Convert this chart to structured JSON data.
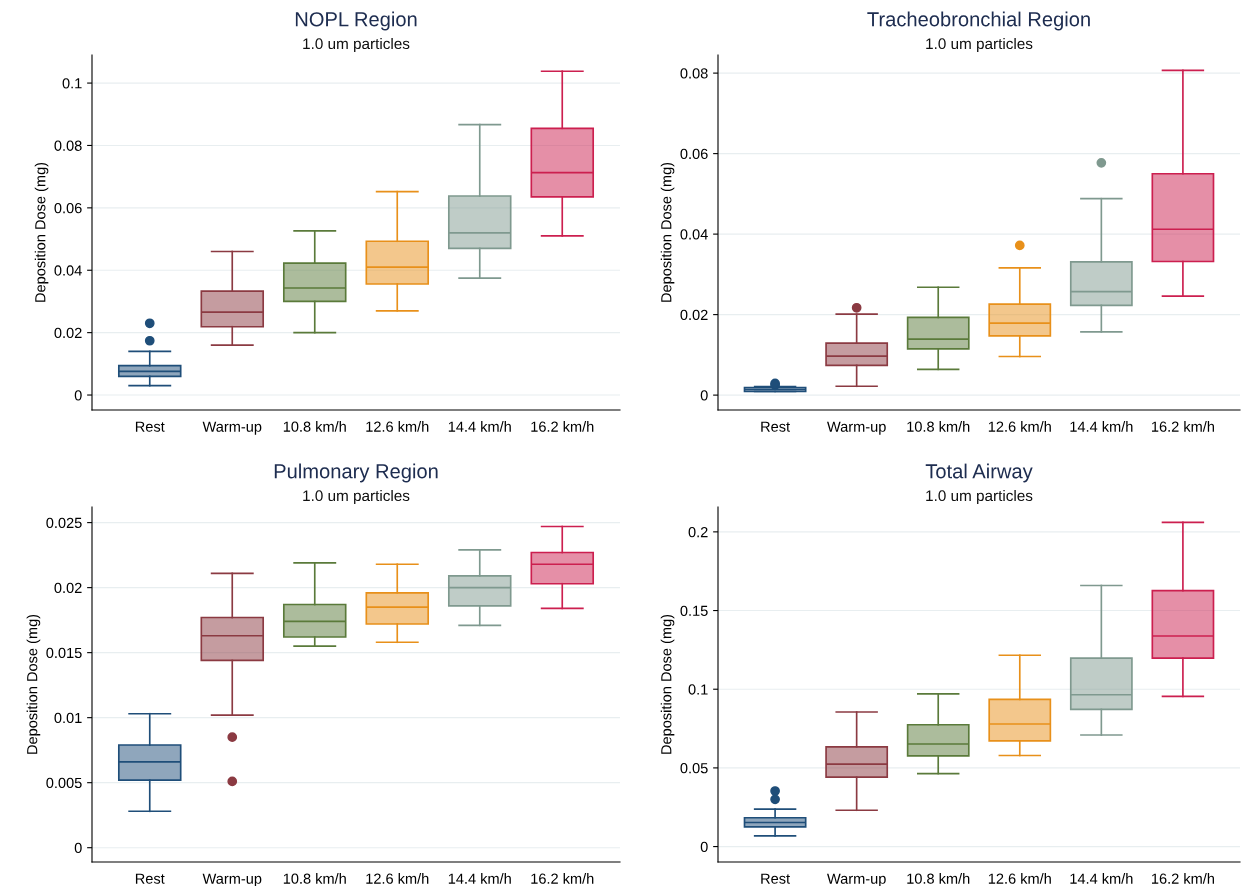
{
  "chart_data": [
    {
      "type": "box",
      "title": "NOPL Region",
      "subtitle": "1.0 um particles",
      "ylabel": "Deposition Dose (mg)",
      "categories": [
        "Rest",
        "Warm-up",
        "10.8 km/h",
        "12.6 km/h",
        "14.4 km/h",
        "16.2 km/h"
      ],
      "colors": [
        "#1f4e79",
        "#8b3a42",
        "#5a7a3a",
        "#e8901a",
        "#7f998f",
        "#cc1f4f"
      ],
      "boxes": [
        {
          "low": 0.003,
          "q1": 0.006,
          "median": 0.0076,
          "q3": 0.0094,
          "high": 0.014,
          "outliers": [
            0.0174,
            0.023
          ]
        },
        {
          "low": 0.016,
          "q1": 0.0219,
          "median": 0.0266,
          "q3": 0.0333,
          "high": 0.046
        },
        {
          "low": 0.02,
          "q1": 0.03,
          "median": 0.0343,
          "q3": 0.0423,
          "high": 0.0526
        },
        {
          "low": 0.027,
          "q1": 0.0356,
          "median": 0.041,
          "q3": 0.0493,
          "high": 0.0652
        },
        {
          "low": 0.0375,
          "q1": 0.047,
          "median": 0.052,
          "q3": 0.0638,
          "high": 0.0867
        },
        {
          "low": 0.051,
          "q1": 0.0635,
          "median": 0.0713,
          "q3": 0.0855,
          "high": 0.1038
        }
      ],
      "ylim": [
        -0.0048,
        0.109
      ],
      "yticks": [
        0,
        0.02,
        0.04,
        0.06,
        0.08,
        0.1
      ],
      "grid": "y"
    },
    {
      "type": "box",
      "title": "Tracheobronchial Region",
      "subtitle": "1.0 um particles",
      "ylabel": "Deposition Dose (mg)",
      "categories": [
        "Rest",
        "Warm-up",
        "10.8 km/h",
        "12.6 km/h",
        "14.4 km/h",
        "16.2 km/h"
      ],
      "colors": [
        "#1f4e79",
        "#8b3a42",
        "#5a7a3a",
        "#e8901a",
        "#7f998f",
        "#cc1f4f"
      ],
      "boxes": [
        {
          "low": 0.0009,
          "q1": 0.0009,
          "median": 0.0014,
          "q3": 0.0019,
          "high": 0.0021,
          "outliers": [
            0.0025,
            0.0029
          ]
        },
        {
          "low": 0.0022,
          "q1": 0.0074,
          "median": 0.0097,
          "q3": 0.0129,
          "high": 0.0201,
          "outliers": [
            0.0217
          ]
        },
        {
          "low": 0.0064,
          "q1": 0.0115,
          "median": 0.0139,
          "q3": 0.0193,
          "high": 0.0268
        },
        {
          "low": 0.0096,
          "q1": 0.0147,
          "median": 0.0179,
          "q3": 0.0226,
          "high": 0.0316,
          "outliers": [
            0.0372
          ]
        },
        {
          "low": 0.0157,
          "q1": 0.0223,
          "median": 0.0257,
          "q3": 0.0331,
          "high": 0.0488,
          "outliers": [
            0.0577
          ]
        },
        {
          "low": 0.0246,
          "q1": 0.0332,
          "median": 0.0412,
          "q3": 0.055,
          "high": 0.0807
        }
      ],
      "ylim": [
        -0.0037,
        0.0845
      ],
      "yticks": [
        0,
        0.02,
        0.04,
        0.06,
        0.08
      ],
      "grid": "y"
    },
    {
      "type": "box",
      "title": "Pulmonary Region",
      "subtitle": "1.0 um particles",
      "ylabel": "Deposition Dose (mg)",
      "categories": [
        "Rest",
        "Warm-up",
        "10.8 km/h",
        "12.6 km/h",
        "14.4 km/h",
        "16.2 km/h"
      ],
      "colors": [
        "#1f4e79",
        "#8b3a42",
        "#5a7a3a",
        "#e8901a",
        "#7f998f",
        "#cc1f4f"
      ],
      "boxes": [
        {
          "low": 0.0028,
          "q1": 0.0052,
          "median": 0.0066,
          "q3": 0.0079,
          "high": 0.0103
        },
        {
          "low": 0.0102,
          "q1": 0.0144,
          "median": 0.0163,
          "q3": 0.0177,
          "high": 0.0211,
          "outliers": [
            0.0085,
            0.0051
          ]
        },
        {
          "low": 0.0155,
          "q1": 0.0162,
          "median": 0.0174,
          "q3": 0.0187,
          "high": 0.0219
        },
        {
          "low": 0.0158,
          "q1": 0.0172,
          "median": 0.0185,
          "q3": 0.0196,
          "high": 0.0218
        },
        {
          "low": 0.0171,
          "q1": 0.0186,
          "median": 0.02,
          "q3": 0.0209,
          "high": 0.0229
        },
        {
          "low": 0.0184,
          "q1": 0.0203,
          "median": 0.0218,
          "q3": 0.0227,
          "high": 0.0247
        }
      ],
      "ylim": [
        -0.0011,
        0.0262
      ],
      "yticks": [
        0,
        0.005,
        0.01,
        0.015,
        0.02,
        0.025
      ],
      "grid": "y"
    },
    {
      "type": "box",
      "title": "Total Airway",
      "subtitle": "1.0 um particles",
      "ylabel": "Deposition Dose (mg)",
      "categories": [
        "Rest",
        "Warm-up",
        "10.8 km/h",
        "12.6 km/h",
        "14.4 km/h",
        "16.2 km/h"
      ],
      "colors": [
        "#1f4e79",
        "#8b3a42",
        "#5a7a3a",
        "#e8901a",
        "#7f998f",
        "#cc1f4f"
      ],
      "boxes": [
        {
          "low": 0.0068,
          "q1": 0.0125,
          "median": 0.0153,
          "q3": 0.0183,
          "high": 0.0238,
          "outliers": [
            0.03,
            0.0353
          ]
        },
        {
          "low": 0.0231,
          "q1": 0.0441,
          "median": 0.0524,
          "q3": 0.0634,
          "high": 0.0855
        },
        {
          "low": 0.0464,
          "q1": 0.0576,
          "median": 0.0652,
          "q3": 0.0774,
          "high": 0.097
        },
        {
          "low": 0.0579,
          "q1": 0.0672,
          "median": 0.0779,
          "q3": 0.0935,
          "high": 0.1216
        },
        {
          "low": 0.0709,
          "q1": 0.0872,
          "median": 0.0965,
          "q3": 0.1198,
          "high": 0.1659
        },
        {
          "low": 0.0955,
          "q1": 0.1198,
          "median": 0.1338,
          "q3": 0.1627,
          "high": 0.206
        }
      ],
      "ylim": [
        -0.0098,
        0.2158
      ],
      "yticks": [
        0,
        0.05,
        0.1,
        0.15,
        0.2
      ],
      "grid": "y"
    }
  ]
}
